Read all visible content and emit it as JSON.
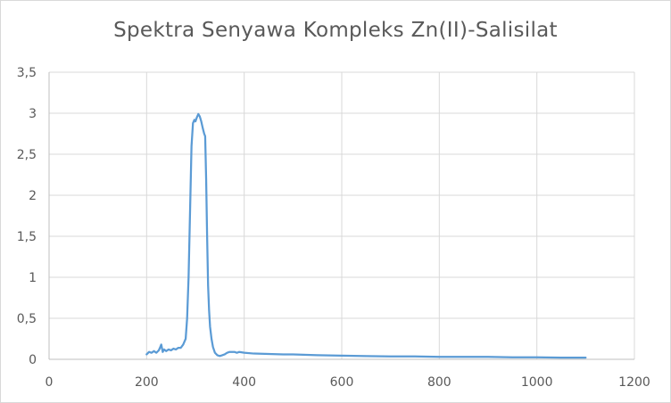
{
  "chart_data": {
    "type": "line",
    "title": "Spektra Senyawa Kompleks Zn(II)-Salisilat",
    "xlabel": "",
    "ylabel": "",
    "xlim": [
      0,
      1200
    ],
    "ylim": [
      0,
      3.5
    ],
    "x_ticks": [
      "0",
      "200",
      "400",
      "600",
      "800",
      "1000",
      "1200"
    ],
    "y_ticks": [
      "0",
      "0,5",
      "1",
      "1,5",
      "2",
      "2,5",
      "3",
      "3,5"
    ],
    "grid": "vertical and horizontal",
    "legend": "none",
    "color": "#5b9bd5",
    "series": [
      {
        "x": [
          200,
          205,
          210,
          215,
          220,
          225,
          228,
          230,
          233,
          236,
          240,
          245,
          250,
          255,
          260,
          265,
          270,
          275,
          280,
          283,
          286,
          289,
          292,
          295,
          298,
          300,
          303,
          306,
          309,
          312,
          315,
          318,
          320,
          322,
          324,
          326,
          328,
          330,
          333,
          336,
          340,
          345,
          350,
          355,
          360,
          365,
          370,
          375,
          380,
          385,
          390,
          400,
          420,
          450,
          480,
          500,
          550,
          600,
          650,
          700,
          750,
          800,
          850,
          900,
          950,
          1000,
          1050,
          1100
        ],
        "y": [
          0.06,
          0.09,
          0.08,
          0.1,
          0.08,
          0.11,
          0.15,
          0.18,
          0.09,
          0.12,
          0.1,
          0.12,
          0.11,
          0.13,
          0.12,
          0.14,
          0.14,
          0.18,
          0.25,
          0.5,
          1.0,
          1.8,
          2.6,
          2.88,
          2.92,
          2.9,
          2.95,
          2.99,
          2.96,
          2.9,
          2.82,
          2.75,
          2.72,
          2.2,
          1.5,
          0.9,
          0.6,
          0.4,
          0.25,
          0.15,
          0.08,
          0.05,
          0.04,
          0.05,
          0.06,
          0.08,
          0.09,
          0.09,
          0.09,
          0.08,
          0.09,
          0.08,
          0.07,
          0.065,
          0.06,
          0.06,
          0.05,
          0.045,
          0.04,
          0.035,
          0.035,
          0.03,
          0.03,
          0.03,
          0.025,
          0.025,
          0.02,
          0.02
        ]
      }
    ]
  }
}
